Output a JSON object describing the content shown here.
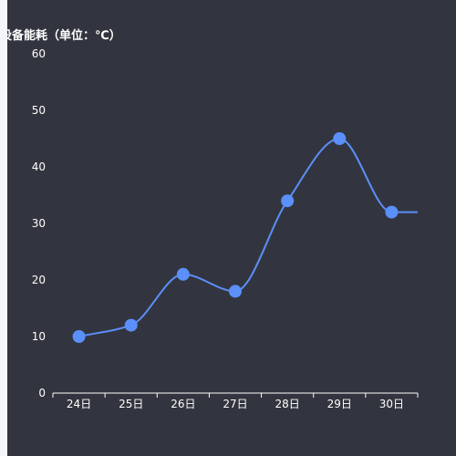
{
  "chart_data": {
    "type": "line",
    "ylabel": "设备能耗（单位：℃）",
    "categories": [
      "24日",
      "25日",
      "26日",
      "27日",
      "28日",
      "29日",
      "30日"
    ],
    "series": [
      {
        "values": [
          10,
          12,
          21,
          18,
          34,
          45,
          32
        ]
      }
    ],
    "end_value": 32,
    "ylim": [
      0,
      60
    ],
    "yticks": [
      0,
      10,
      20,
      30,
      40,
      50,
      60
    ],
    "smooth": true,
    "grid": false,
    "line_color": "#5b8ff9",
    "marker_color": "#5b8ff9",
    "background": "#32353f",
    "text_color": "#ffffff"
  }
}
